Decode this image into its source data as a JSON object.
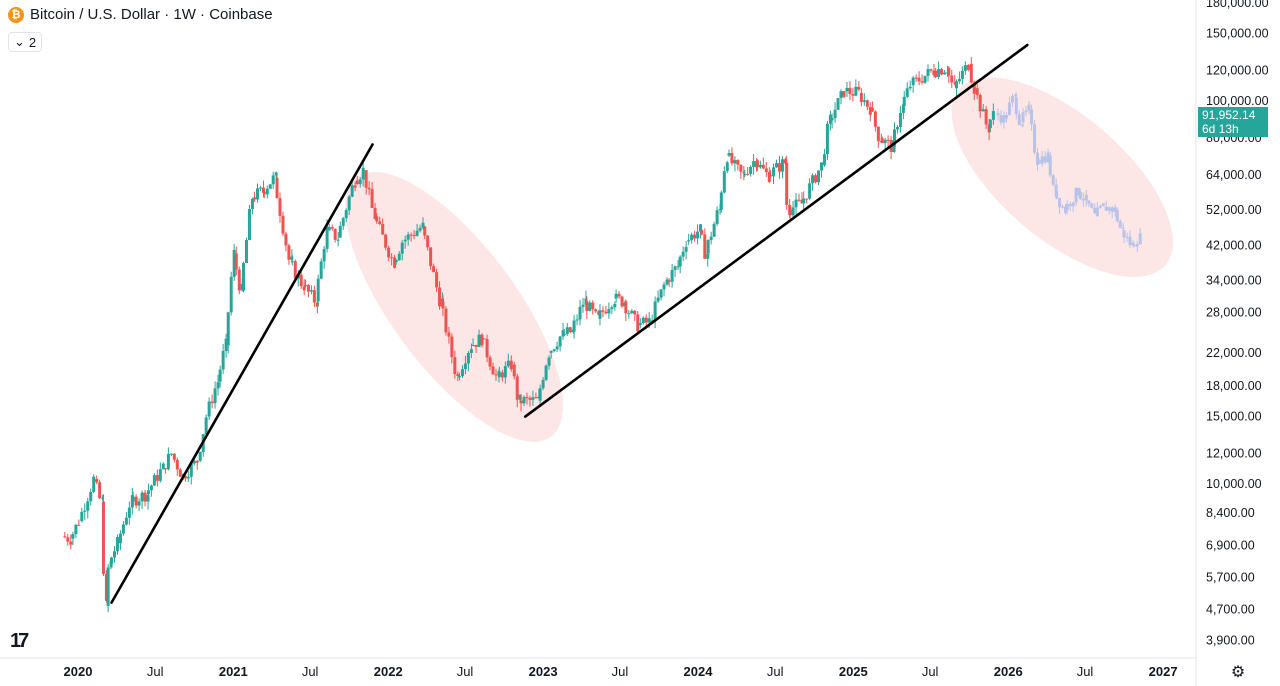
{
  "header": {
    "title": "Bitcoin / U.S. Dollar · 1W · Coinbase",
    "icon": "bitcoin-icon",
    "indicator_count": "2"
  },
  "current_price": {
    "value": "91,952.14",
    "countdown": "6d 13h",
    "color": "#26a69a"
  },
  "colors": {
    "up": "#26a69a",
    "down": "#ef5350",
    "projection": "#b7c3e8",
    "highlight": "#fbdede",
    "trendline": "#000000"
  },
  "chart_data": {
    "type": "candlestick",
    "title": "Bitcoin / U.S. Dollar · 1W · Coinbase",
    "y_scale": "log",
    "ylim": [
      3500,
      185000
    ],
    "y_ticks": [
      "180,000.00",
      "150,000.00",
      "120,000.00",
      "100,000.00",
      "80,000.00",
      "64,000.00",
      "52,000.00",
      "42,000.00",
      "34,000.00",
      "28,000.00",
      "22,000.00",
      "18,000.00",
      "15,000.00",
      "12,000.00",
      "10,000.00",
      "8,400.00",
      "6,900.00",
      "5,700.00",
      "4,700.00",
      "3,900.00"
    ],
    "x_ticks": [
      "2020",
      "Jul",
      "2021",
      "Jul",
      "2022",
      "Jul",
      "2023",
      "Jul",
      "2024",
      "Jul",
      "2025",
      "Jul",
      "2026",
      "Jul",
      "2027"
    ],
    "price_path": [
      [
        "2019-12-01",
        7300
      ],
      [
        "2019-12-20",
        7200
      ],
      [
        "2020-01-10",
        8000
      ],
      [
        "2020-02-14",
        10300
      ],
      [
        "2020-03-01",
        9000
      ],
      [
        "2020-03-12",
        4800
      ],
      [
        "2020-03-20",
        6200
      ],
      [
        "2020-04-10",
        7000
      ],
      [
        "2020-05-10",
        9000
      ],
      [
        "2020-06-15",
        9400
      ],
      [
        "2020-07-25",
        11000
      ],
      [
        "2020-08-15",
        12000
      ],
      [
        "2020-09-10",
        10500
      ],
      [
        "2020-10-15",
        11500
      ],
      [
        "2020-11-05",
        15000
      ],
      [
        "2020-12-01",
        18500
      ],
      [
        "2020-12-20",
        23000
      ],
      [
        "2021-01-08",
        40000
      ],
      [
        "2021-01-25",
        32000
      ],
      [
        "2021-02-20",
        56000
      ],
      [
        "2021-03-15",
        58000
      ],
      [
        "2021-04-14",
        63000
      ],
      [
        "2021-05-20",
        38000
      ],
      [
        "2021-06-20",
        33000
      ],
      [
        "2021-07-20",
        30000
      ],
      [
        "2021-08-15",
        46000
      ],
      [
        "2021-09-10",
        44000
      ],
      [
        "2021-10-20",
        62000
      ],
      [
        "2021-11-10",
        66000
      ],
      [
        "2021-12-05",
        50000
      ],
      [
        "2022-01-20",
        38000
      ],
      [
        "2022-02-10",
        43000
      ],
      [
        "2022-03-28",
        47000
      ],
      [
        "2022-05-10",
        30000
      ],
      [
        "2022-06-18",
        19000
      ],
      [
        "2022-07-20",
        23000
      ],
      [
        "2022-08-15",
        24000
      ],
      [
        "2022-09-20",
        19000
      ],
      [
        "2022-10-25",
        20500
      ],
      [
        "2022-11-10",
        16500
      ],
      [
        "2022-12-25",
        16500
      ],
      [
        "2023-01-20",
        22000
      ],
      [
        "2023-02-20",
        24500
      ],
      [
        "2023-03-15",
        25000
      ],
      [
        "2023-04-14",
        30000
      ],
      [
        "2023-05-15",
        27000
      ],
      [
        "2023-06-22",
        30500
      ],
      [
        "2023-07-15",
        30000
      ],
      [
        "2023-08-18",
        26000
      ],
      [
        "2023-09-15",
        26500
      ],
      [
        "2023-10-25",
        34000
      ],
      [
        "2023-11-20",
        37000
      ],
      [
        "2023-12-10",
        43000
      ],
      [
        "2024-01-10",
        46000
      ],
      [
        "2024-01-25",
        40000
      ],
      [
        "2024-02-25",
        52000
      ],
      [
        "2024-03-14",
        72000
      ],
      [
        "2024-04-20",
        64000
      ],
      [
        "2024-05-20",
        70000
      ],
      [
        "2024-06-20",
        64000
      ],
      [
        "2024-07-28",
        69000
      ],
      [
        "2024-08-05",
        52000
      ],
      [
        "2024-09-06",
        54000
      ],
      [
        "2024-10-25",
        68000
      ],
      [
        "2024-11-12",
        89000
      ],
      [
        "2024-12-17",
        106000
      ],
      [
        "2025-01-20",
        105000
      ],
      [
        "2025-02-15",
        96000
      ],
      [
        "2025-03-10",
        80000
      ],
      [
        "2025-04-08",
        76000
      ],
      [
        "2025-05-01",
        97000
      ],
      [
        "2025-05-22",
        110000
      ],
      [
        "2025-07-14",
        120000
      ],
      [
        "2025-08-14",
        122000
      ],
      [
        "2025-09-01",
        108000
      ],
      [
        "2025-10-06",
        125000
      ],
      [
        "2025-10-20",
        108000
      ],
      [
        "2025-11-20",
        85000
      ],
      [
        "2025-12-01",
        92000
      ]
    ],
    "projection_path": [
      [
        "2025-12-08",
        93000
      ],
      [
        "2025-12-28",
        90000
      ],
      [
        "2026-01-20",
        102000
      ],
      [
        "2026-02-05",
        88000
      ],
      [
        "2026-02-25",
        95000
      ],
      [
        "2026-03-15",
        70000
      ],
      [
        "2026-04-10",
        72000
      ],
      [
        "2026-04-25",
        58000
      ],
      [
        "2026-05-20",
        52000
      ],
      [
        "2026-06-20",
        58000
      ],
      [
        "2026-07-10",
        55000
      ],
      [
        "2026-07-30",
        50000
      ],
      [
        "2026-08-20",
        53000
      ],
      [
        "2026-09-15",
        52000
      ],
      [
        "2026-10-01",
        46000
      ],
      [
        "2026-10-25",
        42000
      ],
      [
        "2026-11-10",
        44000
      ]
    ],
    "trendlines": [
      {
        "from": [
          "2020-03-20",
          4900
        ],
        "to": [
          "2021-11-25",
          77000
        ]
      },
      {
        "from": [
          "2022-11-20",
          15000
        ],
        "to": [
          "2026-02-15",
          140000
        ]
      }
    ],
    "highlight_zones": [
      {
        "date_from": "2021-11-15",
        "date_to": "2022-12-25",
        "price_from": 14500,
        "price_to": 58000
      },
      {
        "date_from": "2025-10-10",
        "date_to": "2026-12-05",
        "price_from": 40000,
        "price_to": 100000
      }
    ]
  },
  "footer": {
    "tv_logo": "17",
    "settings_icon": "gear-icon"
  }
}
